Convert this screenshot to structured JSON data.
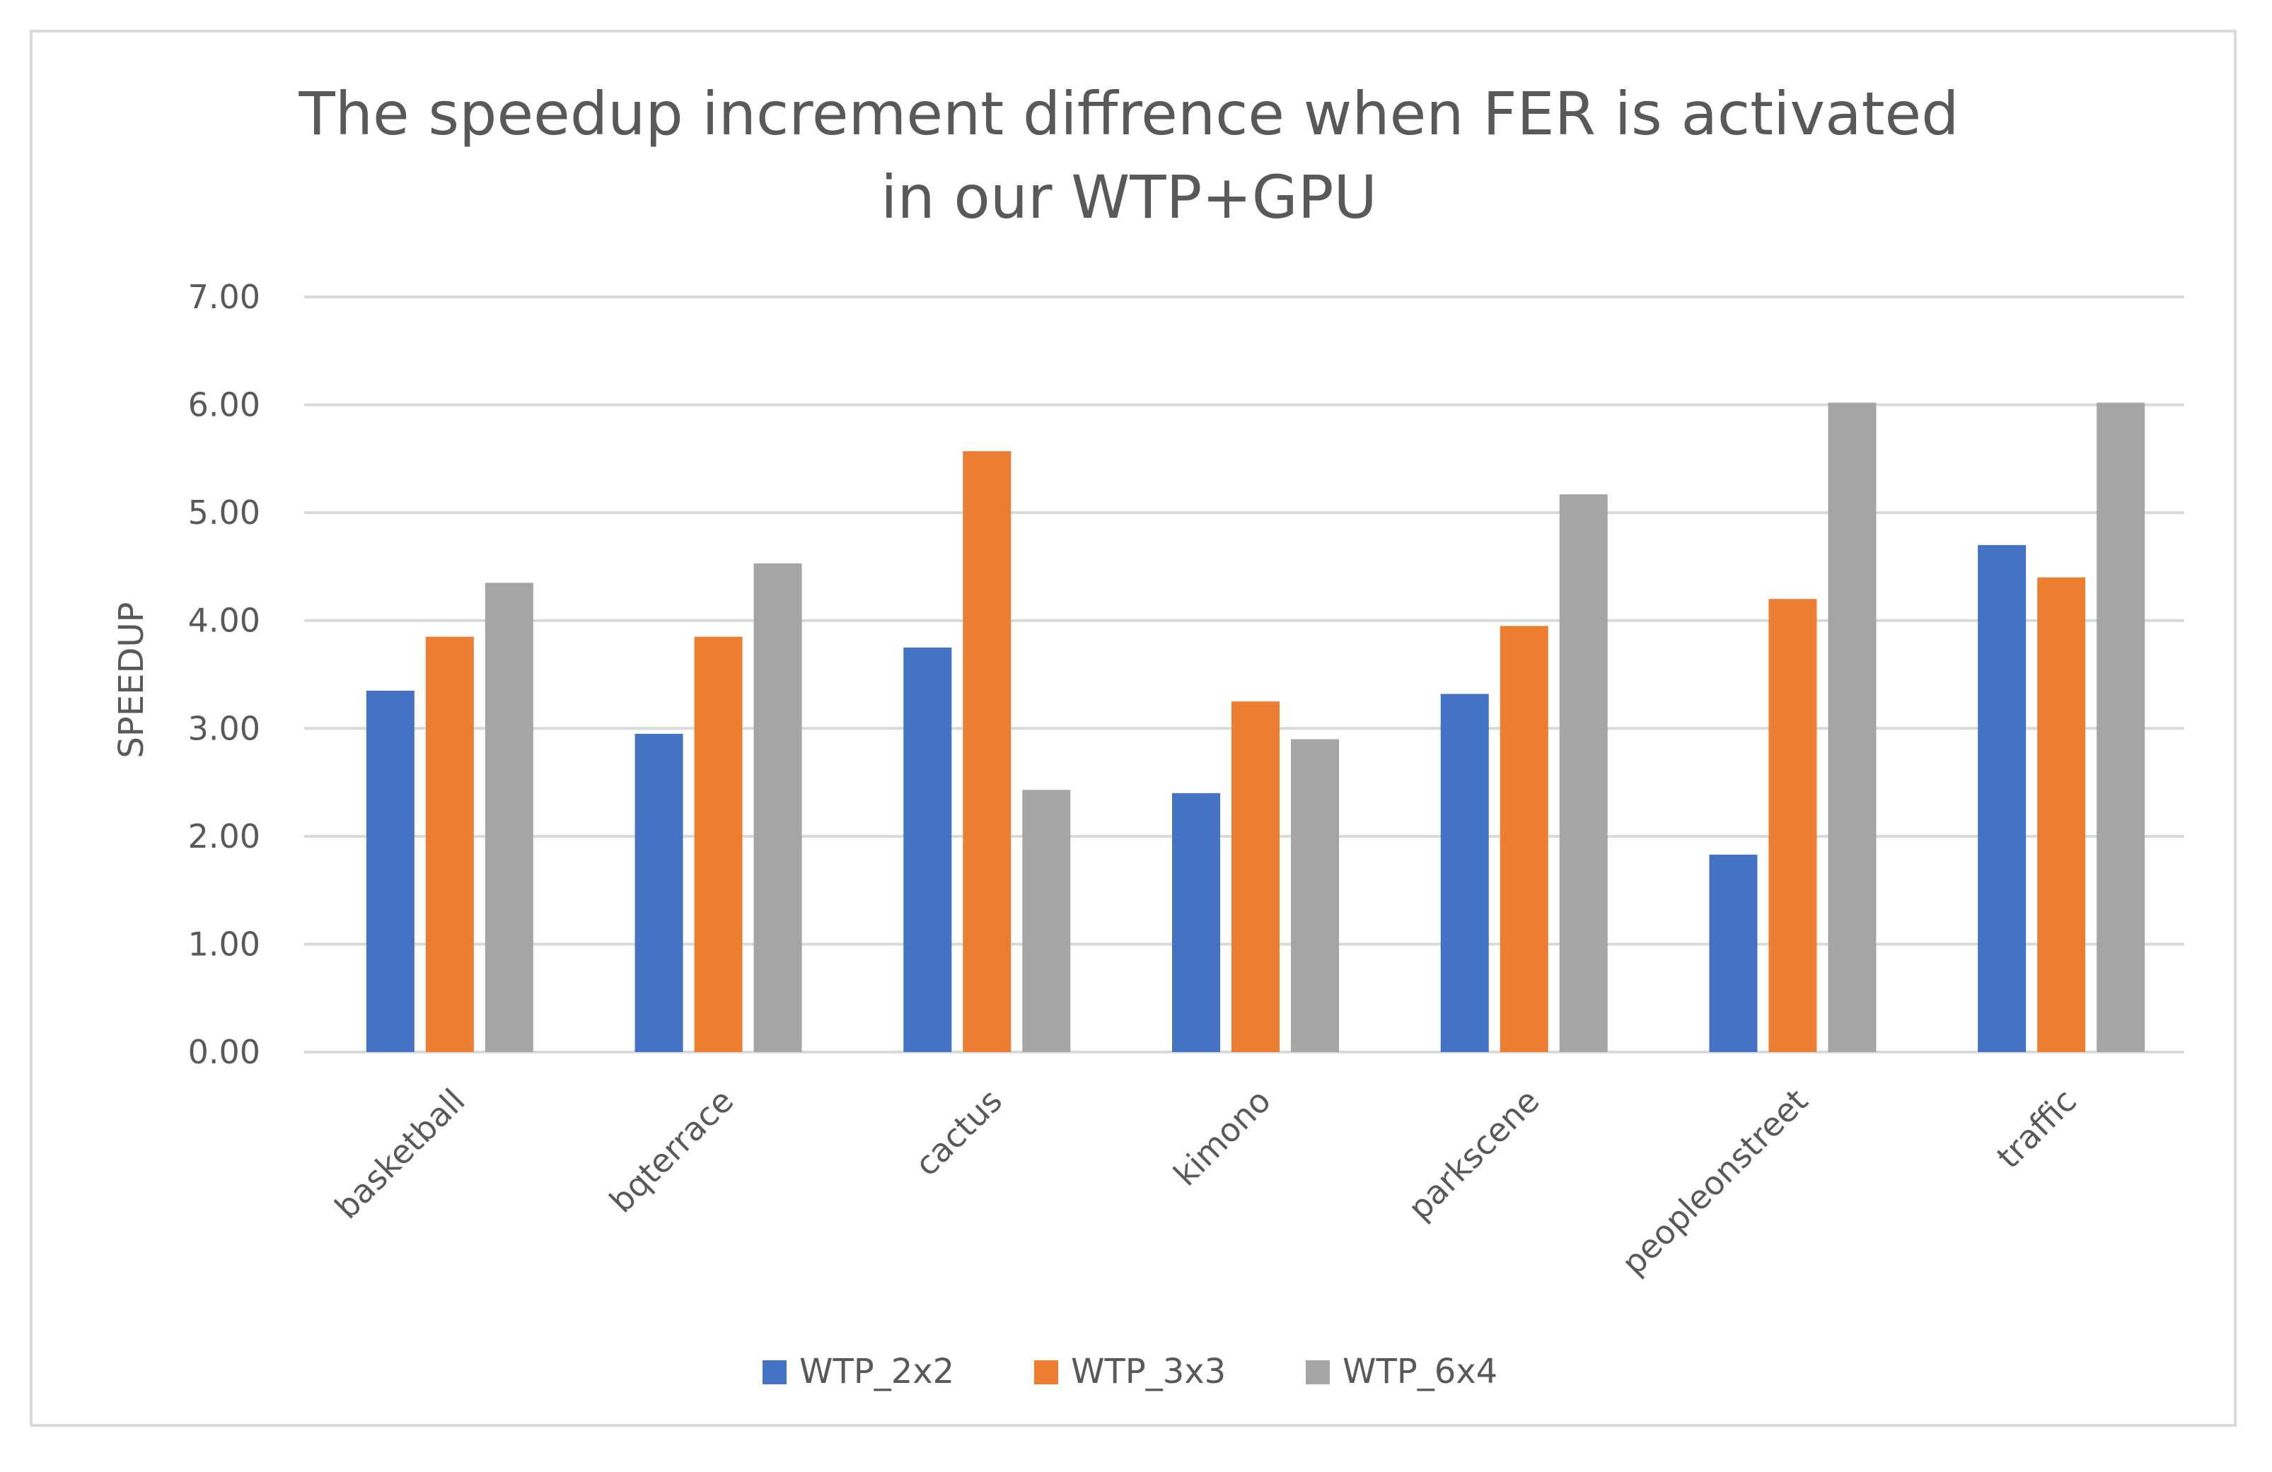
{
  "chart_data": {
    "type": "bar",
    "title_lines": [
      "The speedup increment diffrence when FER is activated",
      "in our WTP+GPU"
    ],
    "xlabel": "",
    "ylabel": "SPEEDUP",
    "ylim": [
      0,
      7
    ],
    "yticks": [
      "0.00",
      "1.00",
      "2.00",
      "3.00",
      "4.00",
      "5.00",
      "6.00",
      "7.00"
    ],
    "grid": true,
    "legend_position": "bottom",
    "categories": [
      "basketball",
      "bqterrace",
      "cactus",
      "kimono",
      "parkscene",
      "peopleonstreet",
      "traffic"
    ],
    "series": [
      {
        "name": "WTP_2x2",
        "color": "#4472c4",
        "values": [
          3.35,
          2.95,
          3.75,
          2.4,
          3.32,
          1.83,
          4.7
        ]
      },
      {
        "name": "WTP_3x3",
        "color": "#ed7d31",
        "values": [
          3.85,
          3.85,
          5.57,
          3.25,
          3.95,
          4.2,
          4.4
        ]
      },
      {
        "name": "WTP_6x4",
        "color": "#a5a5a5",
        "values": [
          4.35,
          4.53,
          2.43,
          2.9,
          5.17,
          6.02,
          6.02
        ]
      }
    ]
  }
}
